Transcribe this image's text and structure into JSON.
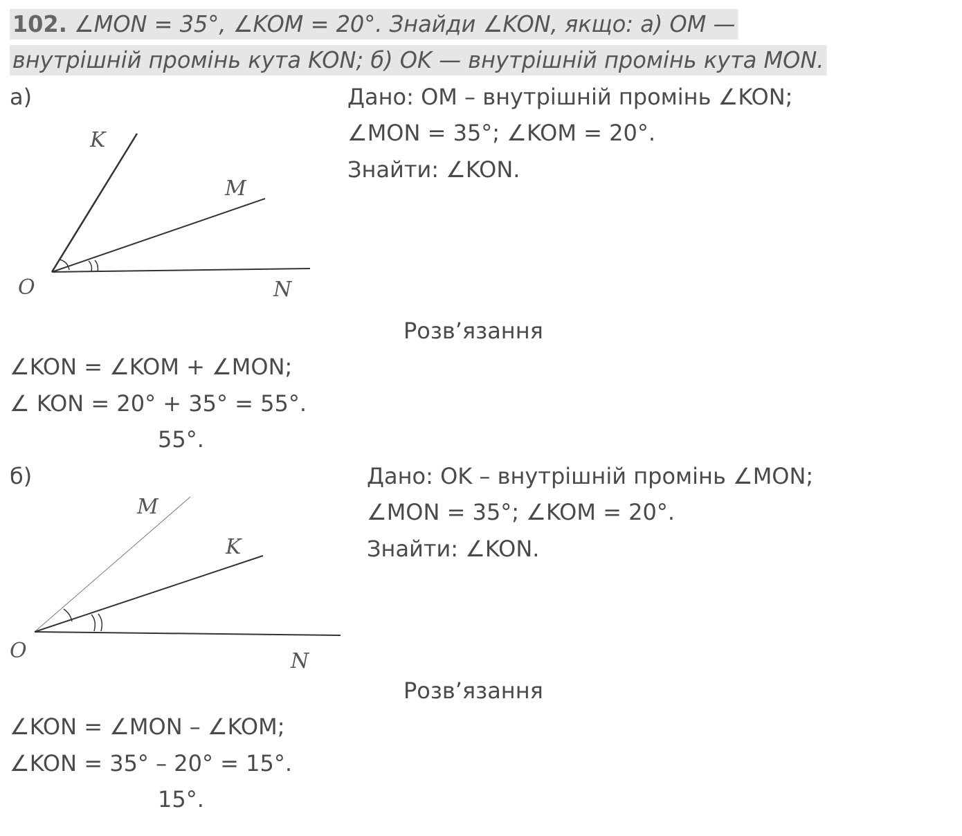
{
  "problem": {
    "number": "102.",
    "line1": "∠MON = 35°, ∠KOM = 20°. Знайди ∠KON, якщо: а) OM —",
    "line2": "внутрішній промінь кута KON; б) OK — внутрішній промінь кута MON."
  },
  "part_a": {
    "label": "а)",
    "given": [
      "Дано: OM – внутрішній промінь ∠KON;",
      "∠MON = 35°; ∠KOM = 20°.",
      "Знайти: ∠KON."
    ],
    "diagram_labels": {
      "O": "O",
      "K": "K",
      "M": "M",
      "N": "N"
    },
    "solution_title": "Розв’язання",
    "solution": [
      "∠KON = ∠KOM + ∠MON;",
      "∠ KON = 20° + 35° = 55°."
    ],
    "answer": "55°."
  },
  "part_b": {
    "label": "б)",
    "given": [
      "Дано: OK – внутрішній промінь ∠MON;",
      "∠MON = 35°; ∠KOM = 20°.",
      "Знайти: ∠KON."
    ],
    "diagram_labels": {
      "O": "O",
      "K": "K",
      "M": "M",
      "N": "N"
    },
    "solution_title": "Розв’язання",
    "solution": [
      "∠KON = ∠MON – ∠KOM;",
      "∠KON = 35° – 20° = 15°."
    ],
    "answer": "15°."
  }
}
